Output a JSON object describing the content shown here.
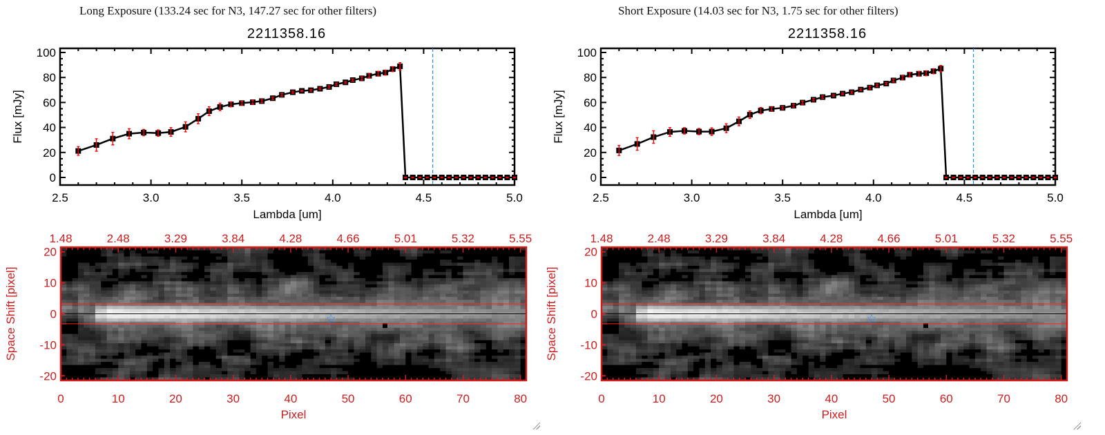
{
  "panels": [
    {
      "title": "Long Exposure (133.24 sec for N3, 147.27 sec for other filters)",
      "object_id": "2211358.16",
      "chart_data": {
        "type": "line",
        "xlabel": "Lambda [um]",
        "ylabel": "Flux [mJy]",
        "xlim": [
          2.5,
          5.0
        ],
        "ylim": [
          0,
          100
        ],
        "xticks": [
          "2.5",
          "3.0",
          "3.5",
          "4.0",
          "4.5",
          "5.0"
        ],
        "yticks": [
          "0",
          "20",
          "40",
          "60",
          "80",
          "100"
        ],
        "marker_line": 4.55,
        "x": [
          2.6,
          2.7,
          2.79,
          2.88,
          2.96,
          3.04,
          3.11,
          3.19,
          3.26,
          3.32,
          3.38,
          3.44,
          3.5,
          3.56,
          3.61,
          3.67,
          3.72,
          3.78,
          3.83,
          3.88,
          3.93,
          3.98,
          4.02,
          4.07,
          4.11,
          4.16,
          4.2,
          4.25,
          4.29,
          4.33,
          4.37,
          4.4,
          4.44,
          4.48,
          4.52,
          4.56,
          4.6,
          4.64,
          4.68,
          4.72,
          4.76,
          4.8,
          4.84,
          4.88,
          4.92,
          4.96,
          5.0
        ],
        "y": [
          21.2,
          26.0,
          31.1,
          35.0,
          35.9,
          35.5,
          36.4,
          40.5,
          47.0,
          53.0,
          56.4,
          58.5,
          59.5,
          60.2,
          61.1,
          63.4,
          66.1,
          68.2,
          69.3,
          69.8,
          71.0,
          72.4,
          74.6,
          76.1,
          77.9,
          79.3,
          81.4,
          83.0,
          83.9,
          86.7,
          88.9,
          0,
          0,
          0,
          0,
          0,
          0,
          0,
          0,
          0,
          0,
          0,
          0,
          0,
          0,
          0,
          0
        ],
        "err": [
          3.5,
          5,
          5,
          4,
          2.5,
          2.5,
          3.5,
          4,
          4,
          3.5,
          3,
          2,
          1.5,
          1.5,
          1.2,
          1,
          1,
          0.8,
          0.5,
          0.7,
          0.8,
          1,
          1,
          0.6,
          1,
          1.2,
          1.5,
          1.8,
          2,
          2,
          3,
          0.3,
          0.3,
          0.3,
          0.3,
          0.3,
          0.3,
          0.3,
          0.3,
          0.3,
          0.3,
          0.3,
          0.3,
          0.3,
          0.3,
          0.3,
          0.3
        ]
      },
      "image": {
        "xlabel": "Pixel",
        "ylabel": "Space Shift [pixel]",
        "xticks": [
          "0",
          "10",
          "20",
          "30",
          "40",
          "50",
          "60",
          "70",
          "80"
        ],
        "yticks": [
          "-20",
          "-10",
          "0",
          "10",
          "20"
        ],
        "top_ticks": [
          "1.48",
          "2.48",
          "3.29",
          "3.84",
          "4.28",
          "4.66",
          "5.01",
          "5.32",
          "5.55"
        ],
        "star_pixel": [
          47,
          -1.5
        ],
        "aperture": [
          -3,
          3
        ]
      }
    },
    {
      "title": "Short Exposure (14.03 sec for N3, 1.75 sec for other filters)",
      "object_id": "2211358.16",
      "chart_data": {
        "type": "line",
        "xlabel": "Lambda [um]",
        "ylabel": "Flux [mJy]",
        "xlim": [
          2.5,
          5.0
        ],
        "ylim": [
          0,
          100
        ],
        "xticks": [
          "2.5",
          "3.0",
          "3.5",
          "4.0",
          "4.5",
          "5.0"
        ],
        "yticks": [
          "0",
          "20",
          "40",
          "60",
          "80",
          "100"
        ],
        "marker_line": 4.55,
        "x": [
          2.6,
          2.7,
          2.79,
          2.88,
          2.96,
          3.04,
          3.11,
          3.19,
          3.26,
          3.32,
          3.38,
          3.44,
          3.5,
          3.56,
          3.61,
          3.67,
          3.72,
          3.78,
          3.83,
          3.88,
          3.93,
          3.98,
          4.02,
          4.07,
          4.11,
          4.16,
          4.2,
          4.25,
          4.29,
          4.33,
          4.37,
          4.4,
          4.44,
          4.48,
          4.52,
          4.56,
          4.6,
          4.64,
          4.68,
          4.72,
          4.76,
          4.8,
          4.84,
          4.88,
          4.92,
          4.96,
          5.0
        ],
        "y": [
          21.6,
          26.8,
          32.3,
          36.4,
          37.3,
          36.7,
          36.7,
          39.4,
          44.9,
          50.2,
          53.5,
          54.8,
          55.7,
          57.4,
          59.9,
          62.2,
          64.3,
          65.5,
          67.1,
          68.2,
          70.3,
          71.9,
          73.7,
          75.1,
          77.6,
          79.9,
          82.2,
          83.0,
          83.4,
          85.0,
          87.1,
          0,
          0,
          0,
          0,
          0,
          0,
          0,
          0,
          0,
          0,
          0,
          0,
          0,
          0,
          0,
          0
        ],
        "err": [
          4,
          5,
          5,
          3.5,
          2.5,
          2.5,
          3,
          3.5,
          3.5,
          3,
          2.5,
          1.5,
          1,
          1.2,
          1.2,
          1,
          1,
          0.6,
          0.6,
          0.8,
          0.8,
          1.2,
          1,
          0.8,
          1.2,
          1.5,
          1.8,
          1.8,
          2,
          2,
          2.5,
          0.3,
          0.3,
          0.3,
          0.3,
          0.3,
          0.3,
          0.3,
          0.3,
          0.3,
          0.3,
          0.3,
          0.3,
          0.3,
          0.3,
          0.3,
          0.3
        ]
      },
      "image": {
        "xlabel": "Pixel",
        "ylabel": "Space Shift [pixel]",
        "xticks": [
          "0",
          "10",
          "20",
          "30",
          "40",
          "50",
          "60",
          "70",
          "80"
        ],
        "yticks": [
          "-20",
          "-10",
          "0",
          "10",
          "20"
        ],
        "top_ticks": [
          "1.48",
          "2.48",
          "3.29",
          "3.84",
          "4.28",
          "4.66",
          "5.01",
          "5.32",
          "5.55"
        ],
        "star_pixel": [
          47,
          -1.5
        ],
        "aperture": [
          -3,
          3
        ]
      }
    }
  ],
  "colors": {
    "axis_red": "#d01c1c",
    "err_red": "#ff0000",
    "marker_line": "#1e90ff",
    "star": "#2a8cff"
  }
}
